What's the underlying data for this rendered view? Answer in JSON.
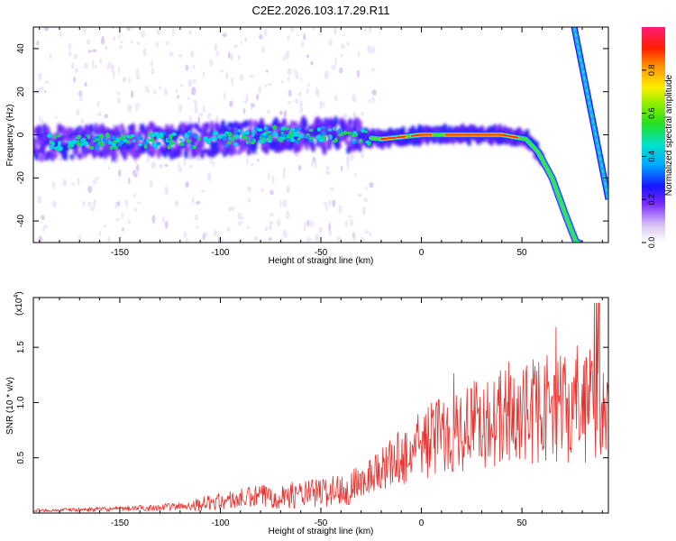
{
  "title": "C2E2.2026.103.17.29.R11",
  "colors": {
    "axis": "#000000",
    "snr_line": "#e8302c",
    "background": "#ffffff"
  },
  "chart_data": [
    {
      "type": "heatmap",
      "name": "spectrogram",
      "xlabel": "Height of straight line (km)",
      "ylabel": "Frequency (Hz)",
      "xlim": [
        -193,
        93
      ],
      "ylim": [
        -50,
        50
      ],
      "xticks": [
        -150,
        -100,
        -50,
        0,
        50
      ],
      "xtick_labels": [
        "-150",
        "-100",
        "-50",
        "0",
        "50"
      ],
      "yticks": [
        -40,
        -20,
        0,
        20,
        40
      ],
      "ytick_labels": [
        "-40",
        "-20",
        "0",
        "20",
        "40"
      ],
      "colorbar": {
        "label": "Normalized spectral amplitude",
        "range": [
          0,
          1
        ],
        "ticks": [
          0.0,
          0.2,
          0.4,
          0.6,
          0.8
        ],
        "tick_labels": [
          "0.0",
          "0.2",
          "0.4",
          "0.6",
          "0.8"
        ]
      },
      "ridge": {
        "description_points_x": [
          -193,
          -150,
          -100,
          -75,
          -50,
          -30,
          -20,
          0,
          20,
          40,
          52,
          58,
          65,
          72,
          77
        ],
        "description_points_y": [
          -4,
          -3,
          -2,
          0,
          0,
          -1,
          -2,
          0,
          0,
          0,
          -2,
          -8,
          -20,
          -38,
          -50
        ]
      },
      "secondary_line": {
        "x": [
          76,
          93
        ],
        "y": [
          50,
          -30
        ]
      }
    },
    {
      "type": "line",
      "name": "snr",
      "xlabel": "Height of straight line (km)",
      "ylabel": "SNR (10 * v/v)",
      "scale_label": "(x10",
      "scale_exp": "4",
      "scale_close": ")",
      "xlim": [
        -193,
        93
      ],
      "ylim": [
        0,
        1.95
      ],
      "xticks": [
        -150,
        -100,
        -50,
        0,
        50
      ],
      "xtick_labels": [
        "-150",
        "-100",
        "-50",
        "0",
        "50"
      ],
      "yticks": [
        0.5,
        1.0,
        1.5
      ],
      "ytick_labels": [
        "0.5",
        "1.0",
        "1.5"
      ],
      "envelope_x": [
        -193,
        -150,
        -120,
        -100,
        -80,
        -60,
        -40,
        -30,
        -20,
        -10,
        0,
        10,
        20,
        30,
        40,
        50,
        60,
        70,
        80,
        88,
        93
      ],
      "envelope_y": [
        0.03,
        0.05,
        0.08,
        0.14,
        0.2,
        0.22,
        0.28,
        0.4,
        0.55,
        0.7,
        0.85,
        1.0,
        1.05,
        1.15,
        1.18,
        1.22,
        1.3,
        1.3,
        1.28,
        1.3,
        1.1
      ]
    }
  ]
}
